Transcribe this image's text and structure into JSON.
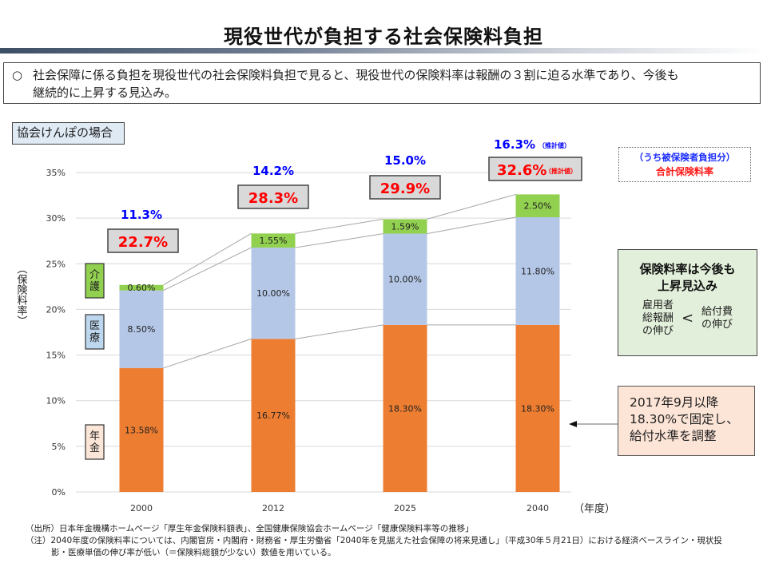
{
  "title": "現役世代が負担する社会保険料負担",
  "summary": {
    "bullet": "○",
    "line1": "社会保障に係る負担を現役世代の社会保険料負担で見ると、現役世代の保険料率は報酬の３割に迫る水準であり、今後も",
    "line2": "継続的に上昇する見込み。"
  },
  "case_label": "協会けんぽの場合",
  "legend_note": {
    "line1": "（うち被保険者負担分）",
    "line2": "合計保険料率"
  },
  "green_box": {
    "head_line1": "保険料率は今後も",
    "head_line2": "上昇見込み",
    "left_line1": "雇用者",
    "left_line2": "総報酬",
    "left_line3": "の伸び",
    "comparator": "<",
    "right_line1": "給付費",
    "right_line2": "の伸び"
  },
  "orange_box": {
    "line1": "2017年9月以降",
    "line2": "18.30%で固定し、",
    "line3": "給付水準を調整"
  },
  "footnotes": {
    "source": "（出所）日本年金機構ホームページ「厚生年金保険料額表」、全国健康保険協会ホームページ「健康保険料率等の推移」",
    "note_line1": "（注）2040年度の保険料率については、内閣官房・内閣府・財務省・厚生労働省「2040年を見据えた社会保障の将来見通し」（平成30年５月21日）における経済ベースライン・現状投",
    "note_line2": "影・医療単価の伸び率が低い（＝保険料総額が少ない）数値を用いている。"
  },
  "colors": {
    "pension": "#ed7d31",
    "medical": "#b4c7e7",
    "care": "#92d050",
    "total_red": "#ff0000",
    "employee_blue": "#0000ff"
  },
  "chart_data": {
    "type": "bar",
    "stacked": true,
    "title": "",
    "xlabel": "（年度）",
    "ylabel": "（保険料率）",
    "ylim": [
      0,
      35
    ],
    "yticks": [
      "0%",
      "5%",
      "10%",
      "15%",
      "20%",
      "25%",
      "30%",
      "35%"
    ],
    "ytick_values": [
      0,
      5,
      10,
      15,
      20,
      25,
      30,
      35
    ],
    "grid": true,
    "categories": [
      "2000",
      "2012",
      "2025",
      "2040"
    ],
    "series": [
      {
        "name": "年金",
        "values": [
          13.58,
          16.77,
          18.3,
          18.3
        ],
        "labels": [
          "13.58%",
          "16.77%",
          "18.30%",
          "18.30%"
        ]
      },
      {
        "name": "医療",
        "values": [
          8.5,
          10.0,
          10.0,
          11.8
        ],
        "labels": [
          "8.50%",
          "10.00%",
          "10.00%",
          "11.80%"
        ]
      },
      {
        "name": "介護",
        "values": [
          0.6,
          1.55,
          1.59,
          2.5
        ],
        "labels": [
          "0.60%",
          "1.55%",
          "1.59%",
          "2.50%"
        ]
      }
    ],
    "legend": [
      {
        "label": "介護",
        "series": "介護"
      },
      {
        "label": "医療",
        "series": "医療"
      },
      {
        "label": "年金",
        "series": "年金"
      }
    ],
    "legend_placement": "left",
    "totals": [
      "22.7%",
      "28.3%",
      "29.9%",
      "32.6%"
    ],
    "total_values": [
      22.7,
      28.3,
      29.9,
      32.6
    ],
    "employee_share": [
      "11.3%",
      "14.2%",
      "15.0%",
      "16.3%"
    ],
    "employee_share_values": [
      11.3,
      14.2,
      15.0,
      16.3
    ],
    "estimate_suffix": "（推計値）",
    "estimate_flags": [
      false,
      false,
      false,
      true
    ]
  }
}
